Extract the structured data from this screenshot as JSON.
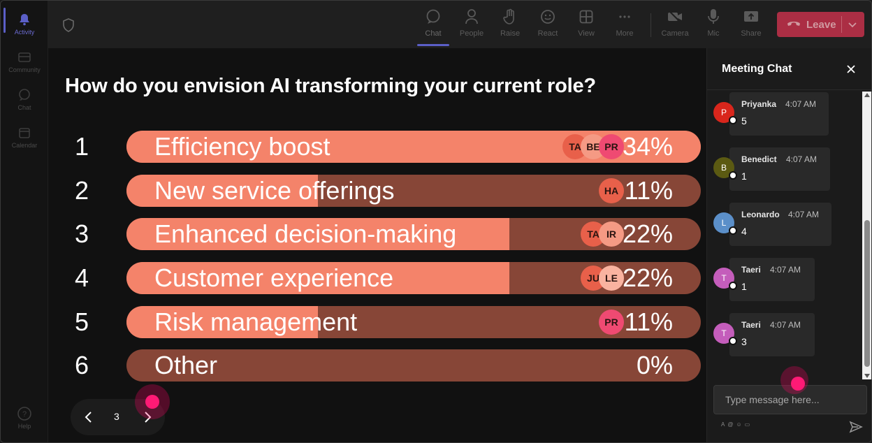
{
  "rail": {
    "items": [
      {
        "label": "Activity",
        "icon": "bell-icon",
        "active": true
      },
      {
        "label": "Community",
        "icon": "community-icon",
        "active": false
      },
      {
        "label": "Chat",
        "icon": "chat-icon",
        "active": false
      },
      {
        "label": "Calendar",
        "icon": "calendar-icon",
        "active": false
      },
      {
        "label": "Help",
        "icon": "help-icon",
        "active": false
      }
    ]
  },
  "toolbar": {
    "chat": "Chat",
    "people": "People",
    "raise": "Raise",
    "react": "React",
    "view": "View",
    "more": "More",
    "camera": "Camera",
    "mic": "Mic",
    "share": "Share",
    "leave": "Leave"
  },
  "poll": {
    "question": "How do you envision AI transforming your current role?",
    "options": [
      {
        "num": "1",
        "label": "Efficiency boost",
        "percent": "34%",
        "fill_fraction": 1.0,
        "voters": [
          "TA",
          "BE",
          "PR"
        ]
      },
      {
        "num": "2",
        "label": "New service offerings",
        "percent": "11%",
        "fill_fraction": 0.333,
        "voters": [
          "HA"
        ]
      },
      {
        "num": "3",
        "label": "Enhanced decision-making",
        "percent": "22%",
        "fill_fraction": 0.667,
        "voters": [
          "TA",
          "IR"
        ]
      },
      {
        "num": "4",
        "label": "Customer experience",
        "percent": "22%",
        "fill_fraction": 0.667,
        "voters": [
          "JU",
          "LE"
        ]
      },
      {
        "num": "5",
        "label": "Risk management",
        "percent": "11%",
        "fill_fraction": 0.333,
        "voters": [
          "PR"
        ]
      },
      {
        "num": "6",
        "label": "Other",
        "percent": "0%",
        "fill_fraction": 0,
        "voters": []
      }
    ]
  },
  "pager": {
    "current": "3"
  },
  "chat": {
    "title": "Meeting Chat",
    "messages": [
      {
        "initial": "P",
        "name": "Priyanka",
        "time": "4:07 AM",
        "body": "5",
        "color": "#d9261c"
      },
      {
        "initial": "B",
        "name": "Benedict",
        "time": "4:07 AM",
        "body": "1",
        "color": "#5b5a12"
      },
      {
        "initial": "L",
        "name": "Leonardo",
        "time": "4:07 AM",
        "body": "4",
        "color": "#5b8fc9"
      },
      {
        "initial": "T",
        "name": "Taeri",
        "time": "4:07 AM",
        "body": "1",
        "color": "#c45dbb"
      },
      {
        "initial": "T",
        "name": "Taeri",
        "time": "4:07 AM",
        "body": "3",
        "color": "#c45dbb"
      }
    ],
    "input_placeholder": "Type message here..."
  },
  "colors": {
    "bar_fill": "#f4836a",
    "bar_track": "#874637",
    "accent": "#5b5fc7",
    "leave": "#c4314b",
    "cursor": "#ff1a75"
  }
}
